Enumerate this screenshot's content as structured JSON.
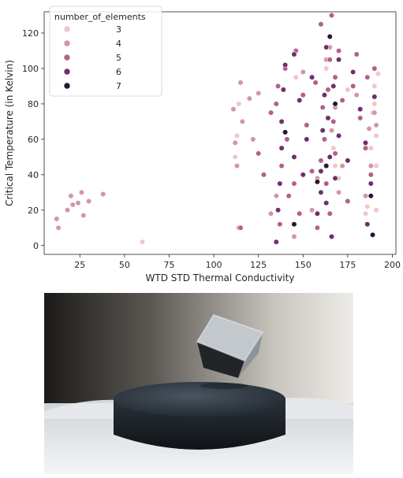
{
  "chart_data": {
    "type": "scatter",
    "xlabel": "WTD STD Thermal Conductivity",
    "ylabel": "Critical Temperature (in Kelvin)",
    "xlim": [
      5,
      202
    ],
    "ylim": [
      -5,
      132
    ],
    "xticks": [
      25,
      50,
      75,
      100,
      125,
      150,
      175,
      200
    ],
    "yticks": [
      0,
      20,
      40,
      60,
      80,
      100,
      120
    ],
    "legend": {
      "title": "number_of_elements",
      "placement": "top-left",
      "entries": [
        {
          "label": "3",
          "color": "#efc7c5"
        },
        {
          "label": "4",
          "color": "#d496a3"
        },
        {
          "label": "5",
          "color": "#b3608a"
        },
        {
          "label": "6",
          "color": "#6f2f6a"
        },
        {
          "label": "7",
          "color": "#2b1536"
        }
      ]
    },
    "series": [
      {
        "name": "3",
        "color": "#efc7c5",
        "x": [
          60,
          112,
          113,
          114,
          146,
          163,
          164,
          167,
          168,
          170,
          170,
          175,
          185,
          186,
          188,
          189,
          190,
          190,
          191,
          191,
          191,
          192
        ],
        "y": [
          2,
          50,
          62,
          80,
          95,
          100,
          72,
          55,
          45,
          38,
          30,
          88,
          18,
          22,
          55,
          75,
          90,
          80,
          62,
          45,
          20,
          97
        ]
      },
      {
        "name": "4",
        "color": "#d496a3",
        "x": [
          12,
          13,
          18,
          20,
          21,
          24,
          26,
          27,
          30,
          38,
          111,
          112,
          113,
          114,
          115,
          116,
          120,
          122,
          125,
          132,
          135,
          145,
          150,
          155,
          158,
          163,
          165,
          166,
          168,
          170,
          172,
          180,
          185,
          187,
          188,
          190,
          191
        ],
        "y": [
          15,
          10,
          20,
          28,
          23,
          24,
          30,
          17,
          25,
          29,
          77,
          58,
          45,
          10,
          92,
          70,
          83,
          60,
          86,
          18,
          28,
          5,
          98,
          20,
          38,
          105,
          112,
          65,
          78,
          30,
          45,
          85,
          28,
          66,
          45,
          75,
          68
        ]
      },
      {
        "name": "5",
        "color": "#b3608a",
        "x": [
          115,
          125,
          128,
          132,
          135,
          136,
          137,
          138,
          140,
          141,
          142,
          145,
          146,
          148,
          150,
          152,
          155,
          157,
          158,
          160,
          160,
          161,
          162,
          163,
          164,
          165,
          165,
          166,
          167,
          168,
          168,
          170,
          172,
          175,
          178,
          180,
          182,
          185,
          186,
          188,
          190
        ],
        "y": [
          10,
          52,
          40,
          75,
          80,
          90,
          12,
          45,
          100,
          60,
          28,
          35,
          110,
          18,
          85,
          68,
          42,
          92,
          10,
          48,
          125,
          78,
          60,
          35,
          88,
          18,
          105,
          130,
          70,
          95,
          52,
          110,
          82,
          25,
          90,
          108,
          72,
          55,
          95,
          40,
          100
        ]
      },
      {
        "name": "6",
        "color": "#6f2f6a",
        "x": [
          135,
          136,
          137,
          138,
          138,
          139,
          140,
          145,
          145,
          148,
          150,
          152,
          155,
          158,
          160,
          160,
          161,
          162,
          163,
          163,
          164,
          165,
          166,
          167,
          168,
          170,
          170,
          175,
          178,
          182,
          185,
          186,
          188,
          190
        ],
        "y": [
          2,
          20,
          35,
          55,
          70,
          88,
          102,
          108,
          50,
          82,
          40,
          60,
          95,
          18,
          30,
          42,
          65,
          85,
          24,
          112,
          72,
          50,
          5,
          90,
          38,
          105,
          62,
          48,
          98,
          77,
          58,
          12,
          35,
          84
        ]
      },
      {
        "name": "7",
        "color": "#2b1536",
        "x": [
          140,
          145,
          158,
          163,
          165,
          168,
          188,
          189
        ],
        "y": [
          64,
          12,
          36,
          45,
          118,
          80,
          28,
          6
        ]
      }
    ]
  },
  "photo": {
    "subject": "superconducting-magnetic-levitation"
  }
}
